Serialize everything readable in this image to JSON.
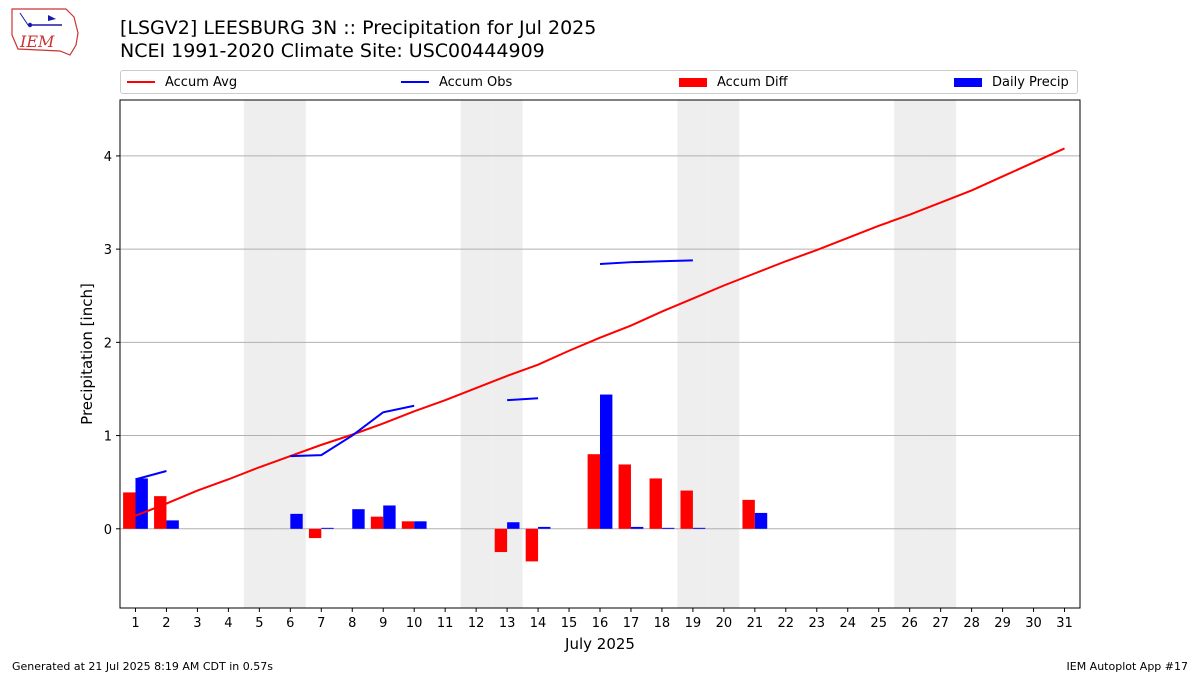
{
  "header": {
    "logo_text": "IEM",
    "title_line1": "[LSGV2] LEESBURG 3N :: Precipitation for Jul 2025",
    "title_line2": "NCEI 1991-2020 Climate Site: USC00444909"
  },
  "footer": {
    "generated": "Generated at 21 Jul 2025 8:19 AM CDT in 0.57s",
    "app": "IEM Autoplot App #17"
  },
  "colors": {
    "avg": "#ff0000",
    "obs": "#0000ff",
    "diff": "#ff0000",
    "daily": "#0000ff",
    "weekend": "#eeeeee",
    "grid": "#b0b0b0"
  },
  "chart_data": {
    "type": "bar",
    "xlabel": "July 2025",
    "ylabel": "Precipitation [inch]",
    "xlim": [
      0.5,
      31.5
    ],
    "ylim": [
      -0.85,
      4.6
    ],
    "yticks": [
      0,
      1,
      2,
      3,
      4
    ],
    "xticks": [
      1,
      2,
      3,
      4,
      5,
      6,
      7,
      8,
      9,
      10,
      11,
      12,
      13,
      14,
      15,
      16,
      17,
      18,
      19,
      20,
      21,
      22,
      23,
      24,
      25,
      26,
      27,
      28,
      29,
      30,
      31
    ],
    "grid": "horizontal",
    "legend_placement": "top",
    "weekend_days": [
      5,
      6,
      12,
      13,
      19,
      20,
      26,
      27
    ],
    "legend": [
      "Accum Avg",
      "Accum Obs",
      "Accum Diff",
      "Daily Precip"
    ],
    "accum_avg": {
      "x": [
        1,
        2,
        3,
        4,
        5,
        6,
        7,
        8,
        9,
        10,
        11,
        12,
        13,
        14,
        15,
        16,
        17,
        18,
        19,
        20,
        21,
        22,
        23,
        24,
        25,
        26,
        27,
        28,
        29,
        30,
        31
      ],
      "y": [
        0.14,
        0.27,
        0.41,
        0.53,
        0.66,
        0.78,
        0.9,
        1.01,
        1.13,
        1.26,
        1.38,
        1.51,
        1.64,
        1.76,
        1.91,
        2.05,
        2.18,
        2.33,
        2.47,
        2.61,
        2.74,
        2.87,
        2.99,
        3.12,
        3.25,
        3.37,
        3.5,
        3.63,
        3.78,
        3.93,
        4.08
      ]
    },
    "accum_obs_segments": [
      {
        "x": [
          1,
          2
        ],
        "y": [
          0.53,
          0.62
        ]
      },
      {
        "x": [
          6,
          7,
          8,
          9,
          10
        ],
        "y": [
          0.78,
          0.79,
          1.0,
          1.25,
          1.32
        ]
      },
      {
        "x": [
          13,
          14
        ],
        "y": [
          1.38,
          1.4
        ]
      },
      {
        "x": [
          16,
          17,
          18,
          19
        ],
        "y": [
          2.84,
          2.86,
          2.87,
          2.88
        ]
      }
    ],
    "accum_diff": {
      "x": [
        1,
        2,
        7,
        9,
        10,
        13,
        14,
        16,
        17,
        18,
        19,
        21
      ],
      "y": [
        0.39,
        0.35,
        -0.1,
        0.13,
        0.08,
        -0.25,
        -0.35,
        0.8,
        0.69,
        0.54,
        0.41,
        0.31
      ]
    },
    "daily_precip": {
      "x": [
        1,
        2,
        6,
        7,
        8,
        9,
        10,
        13,
        14,
        16,
        17,
        18,
        19,
        21
      ],
      "y": [
        0.54,
        0.09,
        0.16,
        0.01,
        0.21,
        0.25,
        0.08,
        0.07,
        0.02,
        1.44,
        0.02,
        0.01,
        0.01,
        0.17
      ]
    }
  }
}
